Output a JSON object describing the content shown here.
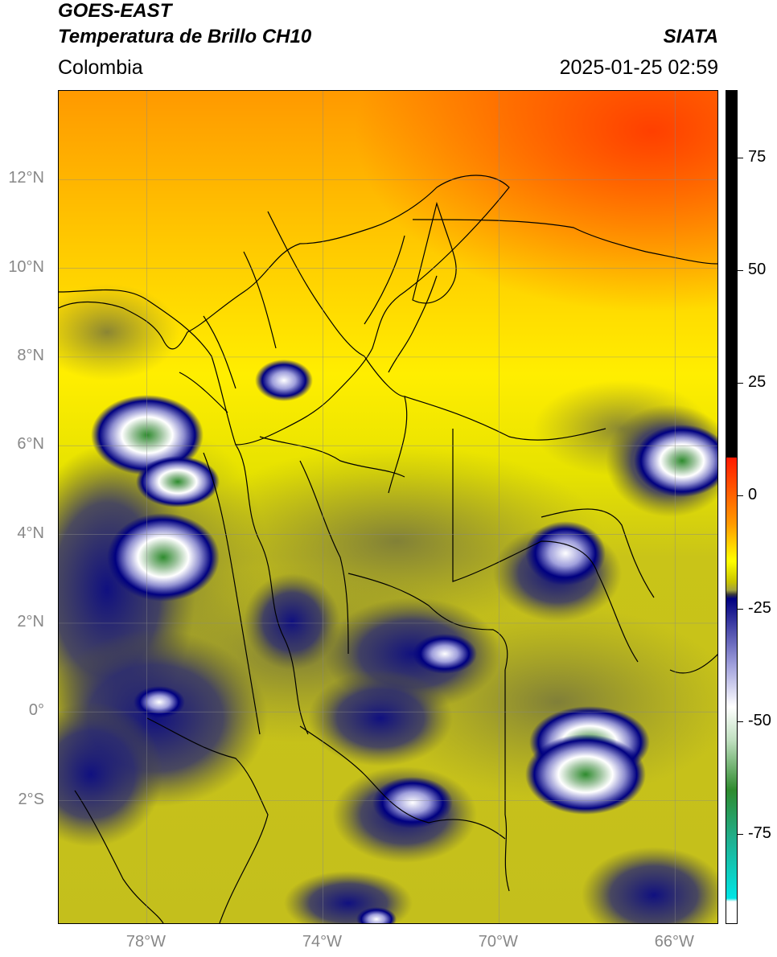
{
  "header": {
    "satellite": "GOES-EAST",
    "product": "Temperatura de Brillo CH10",
    "region": "Colombia",
    "agency": "SIATA",
    "datetime": "2025-01-25 02:59"
  },
  "map": {
    "extent": {
      "lon_min": -80,
      "lon_max": -65,
      "lat_min": -4.8,
      "lat_max": 14
    },
    "lat_ticks": [
      {
        "value": 12,
        "label": "12°N"
      },
      {
        "value": 10,
        "label": "10°N"
      },
      {
        "value": 8,
        "label": "8°N"
      },
      {
        "value": 6,
        "label": "6°N"
      },
      {
        "value": 4,
        "label": "4°N"
      },
      {
        "value": 2,
        "label": "2°N"
      },
      {
        "value": 0,
        "label": "0°"
      },
      {
        "value": -2,
        "label": "2°S"
      }
    ],
    "lon_ticks": [
      {
        "value": -78,
        "label": "78°W"
      },
      {
        "value": -74,
        "label": "74°W"
      },
      {
        "value": -70,
        "label": "70°W"
      },
      {
        "value": -66,
        "label": "66°W"
      }
    ],
    "gridlines": true
  },
  "colorbar": {
    "range": [
      -95,
      90
    ],
    "ticks": [
      {
        "value": 75,
        "label": "75"
      },
      {
        "value": 50,
        "label": "50"
      },
      {
        "value": 25,
        "label": "25"
      },
      {
        "value": 0,
        "label": "0"
      },
      {
        "value": -25,
        "label": "-25"
      },
      {
        "value": -50,
        "label": "-50"
      },
      {
        "value": -75,
        "label": "-75"
      }
    ],
    "colors": {
      "black": "#000000",
      "red": "#ff1a00",
      "orange": "#ff9a00",
      "yellow": "#ffff00",
      "olive": "#b0b030",
      "dark_gray": "#3a3a3a",
      "navy": "#000080",
      "white": "#ffffff",
      "green": "#2e8b2e",
      "cyan": "#00e5e5"
    }
  }
}
